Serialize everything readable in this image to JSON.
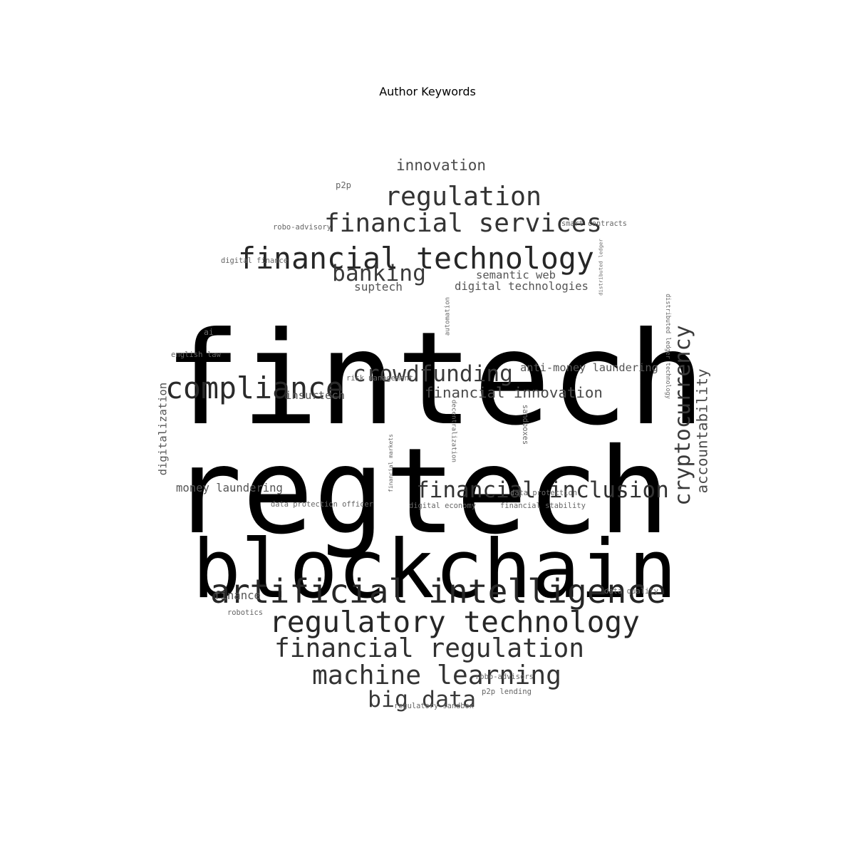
{
  "title": "Author Keywords",
  "words": [
    {
      "text": "fintech",
      "color": "#000000"
    },
    {
      "text": "regtech",
      "color": "#000000"
    },
    {
      "text": "blockchain",
      "color": "#000000"
    },
    {
      "text": "artificial intelligence",
      "color": "#262626"
    },
    {
      "text": "regulatory technology",
      "color": "#262626"
    },
    {
      "text": "financial technology",
      "color": "#262626"
    },
    {
      "text": "compliance",
      "color": "#2a2a2a"
    },
    {
      "text": "financial regulation",
      "color": "#303030"
    },
    {
      "text": "machine learning",
      "color": "#333333"
    },
    {
      "text": "regulation",
      "color": "#333333"
    },
    {
      "text": "financial services",
      "color": "#333333"
    },
    {
      "text": "financial inclusion",
      "color": "#333333"
    },
    {
      "text": "cryptocurrency",
      "color": "#3a3a3a"
    },
    {
      "text": "big data",
      "color": "#3a3a3a"
    },
    {
      "text": "crowdfunding",
      "color": "#3a3a3a"
    },
    {
      "text": "banking",
      "color": "#3a3a3a"
    },
    {
      "text": "accountability",
      "color": "#4a4a4a"
    },
    {
      "text": "innovation",
      "color": "#4a4a4a"
    },
    {
      "text": "financial innovation",
      "color": "#4a4a4a"
    },
    {
      "text": "digitalization",
      "color": "#555555"
    },
    {
      "text": "money laundering",
      "color": "#555555"
    },
    {
      "text": "semantic web",
      "color": "#555555"
    },
    {
      "text": "digital technologies",
      "color": "#555555"
    },
    {
      "text": "suptech",
      "color": "#555555"
    },
    {
      "text": "insurtech",
      "color": "#555555"
    },
    {
      "text": "anti-money laundering",
      "color": "#555555"
    },
    {
      "text": "finance",
      "color": "#555555"
    },
    {
      "text": "distributed ledger technology",
      "color": "#666666"
    },
    {
      "text": "distributed ledger",
      "color": "#666666"
    },
    {
      "text": "automation",
      "color": "#666666"
    },
    {
      "text": "decentralization",
      "color": "#666666"
    },
    {
      "text": "financial markets",
      "color": "#666666"
    },
    {
      "text": "sandboxes",
      "color": "#666666"
    },
    {
      "text": "robo-advisory",
      "color": "#666666"
    },
    {
      "text": "smart contracts",
      "color": "#666666"
    },
    {
      "text": "digital finance",
      "color": "#666666"
    },
    {
      "text": "p2p",
      "color": "#666666"
    },
    {
      "text": "ai",
      "color": "#666666"
    },
    {
      "text": "english law",
      "color": "#666666"
    },
    {
      "text": "risk management",
      "color": "#666666"
    },
    {
      "text": "data protection officer",
      "color": "#666666"
    },
    {
      "text": "digital economy",
      "color": "#666666"
    },
    {
      "text": "financial stability",
      "color": "#666666"
    },
    {
      "text": "data protection",
      "color": "#666666"
    },
    {
      "text": "data quality",
      "color": "#666666"
    },
    {
      "text": "robotics",
      "color": "#666666"
    },
    {
      "text": "robo-advisors",
      "color": "#666666"
    },
    {
      "text": "p2p lending",
      "color": "#666666"
    },
    {
      "text": "regulatory sandbox",
      "color": "#666666"
    }
  ]
}
